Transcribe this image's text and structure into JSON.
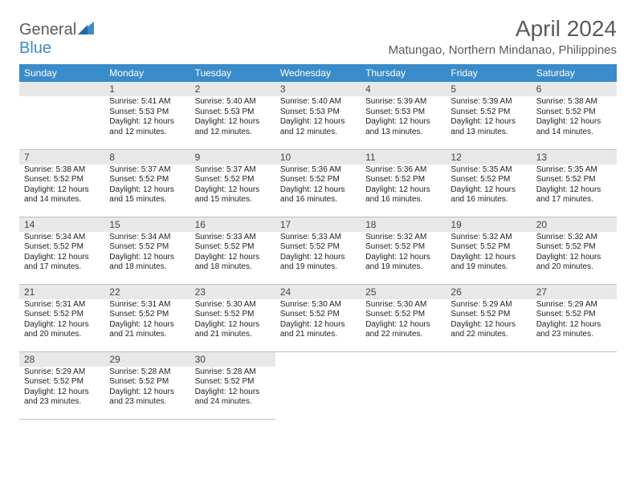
{
  "logo": {
    "text_general": "General",
    "text_blue": "Blue"
  },
  "header": {
    "month_title": "April 2024",
    "location": "Matungao, Northern Mindanao, Philippines"
  },
  "colors": {
    "header_bg": "#3a8bc9",
    "header_text": "#ffffff",
    "daynum_bg": "#e8e8e8",
    "border": "#bfbfbf",
    "logo_gray": "#5a5a5a",
    "logo_blue": "#3a8bc9"
  },
  "weekdays": [
    "Sunday",
    "Monday",
    "Tuesday",
    "Wednesday",
    "Thursday",
    "Friday",
    "Saturday"
  ],
  "weeks": [
    [
      null,
      {
        "n": "1",
        "sr": "5:41 AM",
        "ss": "5:53 PM",
        "dl": "12 hours and 12 minutes."
      },
      {
        "n": "2",
        "sr": "5:40 AM",
        "ss": "5:53 PM",
        "dl": "12 hours and 12 minutes."
      },
      {
        "n": "3",
        "sr": "5:40 AM",
        "ss": "5:53 PM",
        "dl": "12 hours and 12 minutes."
      },
      {
        "n": "4",
        "sr": "5:39 AM",
        "ss": "5:53 PM",
        "dl": "12 hours and 13 minutes."
      },
      {
        "n": "5",
        "sr": "5:39 AM",
        "ss": "5:52 PM",
        "dl": "12 hours and 13 minutes."
      },
      {
        "n": "6",
        "sr": "5:38 AM",
        "ss": "5:52 PM",
        "dl": "12 hours and 14 minutes."
      }
    ],
    [
      {
        "n": "7",
        "sr": "5:38 AM",
        "ss": "5:52 PM",
        "dl": "12 hours and 14 minutes."
      },
      {
        "n": "8",
        "sr": "5:37 AM",
        "ss": "5:52 PM",
        "dl": "12 hours and 15 minutes."
      },
      {
        "n": "9",
        "sr": "5:37 AM",
        "ss": "5:52 PM",
        "dl": "12 hours and 15 minutes."
      },
      {
        "n": "10",
        "sr": "5:36 AM",
        "ss": "5:52 PM",
        "dl": "12 hours and 16 minutes."
      },
      {
        "n": "11",
        "sr": "5:36 AM",
        "ss": "5:52 PM",
        "dl": "12 hours and 16 minutes."
      },
      {
        "n": "12",
        "sr": "5:35 AM",
        "ss": "5:52 PM",
        "dl": "12 hours and 16 minutes."
      },
      {
        "n": "13",
        "sr": "5:35 AM",
        "ss": "5:52 PM",
        "dl": "12 hours and 17 minutes."
      }
    ],
    [
      {
        "n": "14",
        "sr": "5:34 AM",
        "ss": "5:52 PM",
        "dl": "12 hours and 17 minutes."
      },
      {
        "n": "15",
        "sr": "5:34 AM",
        "ss": "5:52 PM",
        "dl": "12 hours and 18 minutes."
      },
      {
        "n": "16",
        "sr": "5:33 AM",
        "ss": "5:52 PM",
        "dl": "12 hours and 18 minutes."
      },
      {
        "n": "17",
        "sr": "5:33 AM",
        "ss": "5:52 PM",
        "dl": "12 hours and 19 minutes."
      },
      {
        "n": "18",
        "sr": "5:32 AM",
        "ss": "5:52 PM",
        "dl": "12 hours and 19 minutes."
      },
      {
        "n": "19",
        "sr": "5:32 AM",
        "ss": "5:52 PM",
        "dl": "12 hours and 19 minutes."
      },
      {
        "n": "20",
        "sr": "5:32 AM",
        "ss": "5:52 PM",
        "dl": "12 hours and 20 minutes."
      }
    ],
    [
      {
        "n": "21",
        "sr": "5:31 AM",
        "ss": "5:52 PM",
        "dl": "12 hours and 20 minutes."
      },
      {
        "n": "22",
        "sr": "5:31 AM",
        "ss": "5:52 PM",
        "dl": "12 hours and 21 minutes."
      },
      {
        "n": "23",
        "sr": "5:30 AM",
        "ss": "5:52 PM",
        "dl": "12 hours and 21 minutes."
      },
      {
        "n": "24",
        "sr": "5:30 AM",
        "ss": "5:52 PM",
        "dl": "12 hours and 21 minutes."
      },
      {
        "n": "25",
        "sr": "5:30 AM",
        "ss": "5:52 PM",
        "dl": "12 hours and 22 minutes."
      },
      {
        "n": "26",
        "sr": "5:29 AM",
        "ss": "5:52 PM",
        "dl": "12 hours and 22 minutes."
      },
      {
        "n": "27",
        "sr": "5:29 AM",
        "ss": "5:52 PM",
        "dl": "12 hours and 23 minutes."
      }
    ],
    [
      {
        "n": "28",
        "sr": "5:29 AM",
        "ss": "5:52 PM",
        "dl": "12 hours and 23 minutes."
      },
      {
        "n": "29",
        "sr": "5:28 AM",
        "ss": "5:52 PM",
        "dl": "12 hours and 23 minutes."
      },
      {
        "n": "30",
        "sr": "5:28 AM",
        "ss": "5:52 PM",
        "dl": "12 hours and 24 minutes."
      },
      null,
      null,
      null,
      null
    ]
  ],
  "labels": {
    "sunrise": "Sunrise:",
    "sunset": "Sunset:",
    "daylight": "Daylight:"
  }
}
